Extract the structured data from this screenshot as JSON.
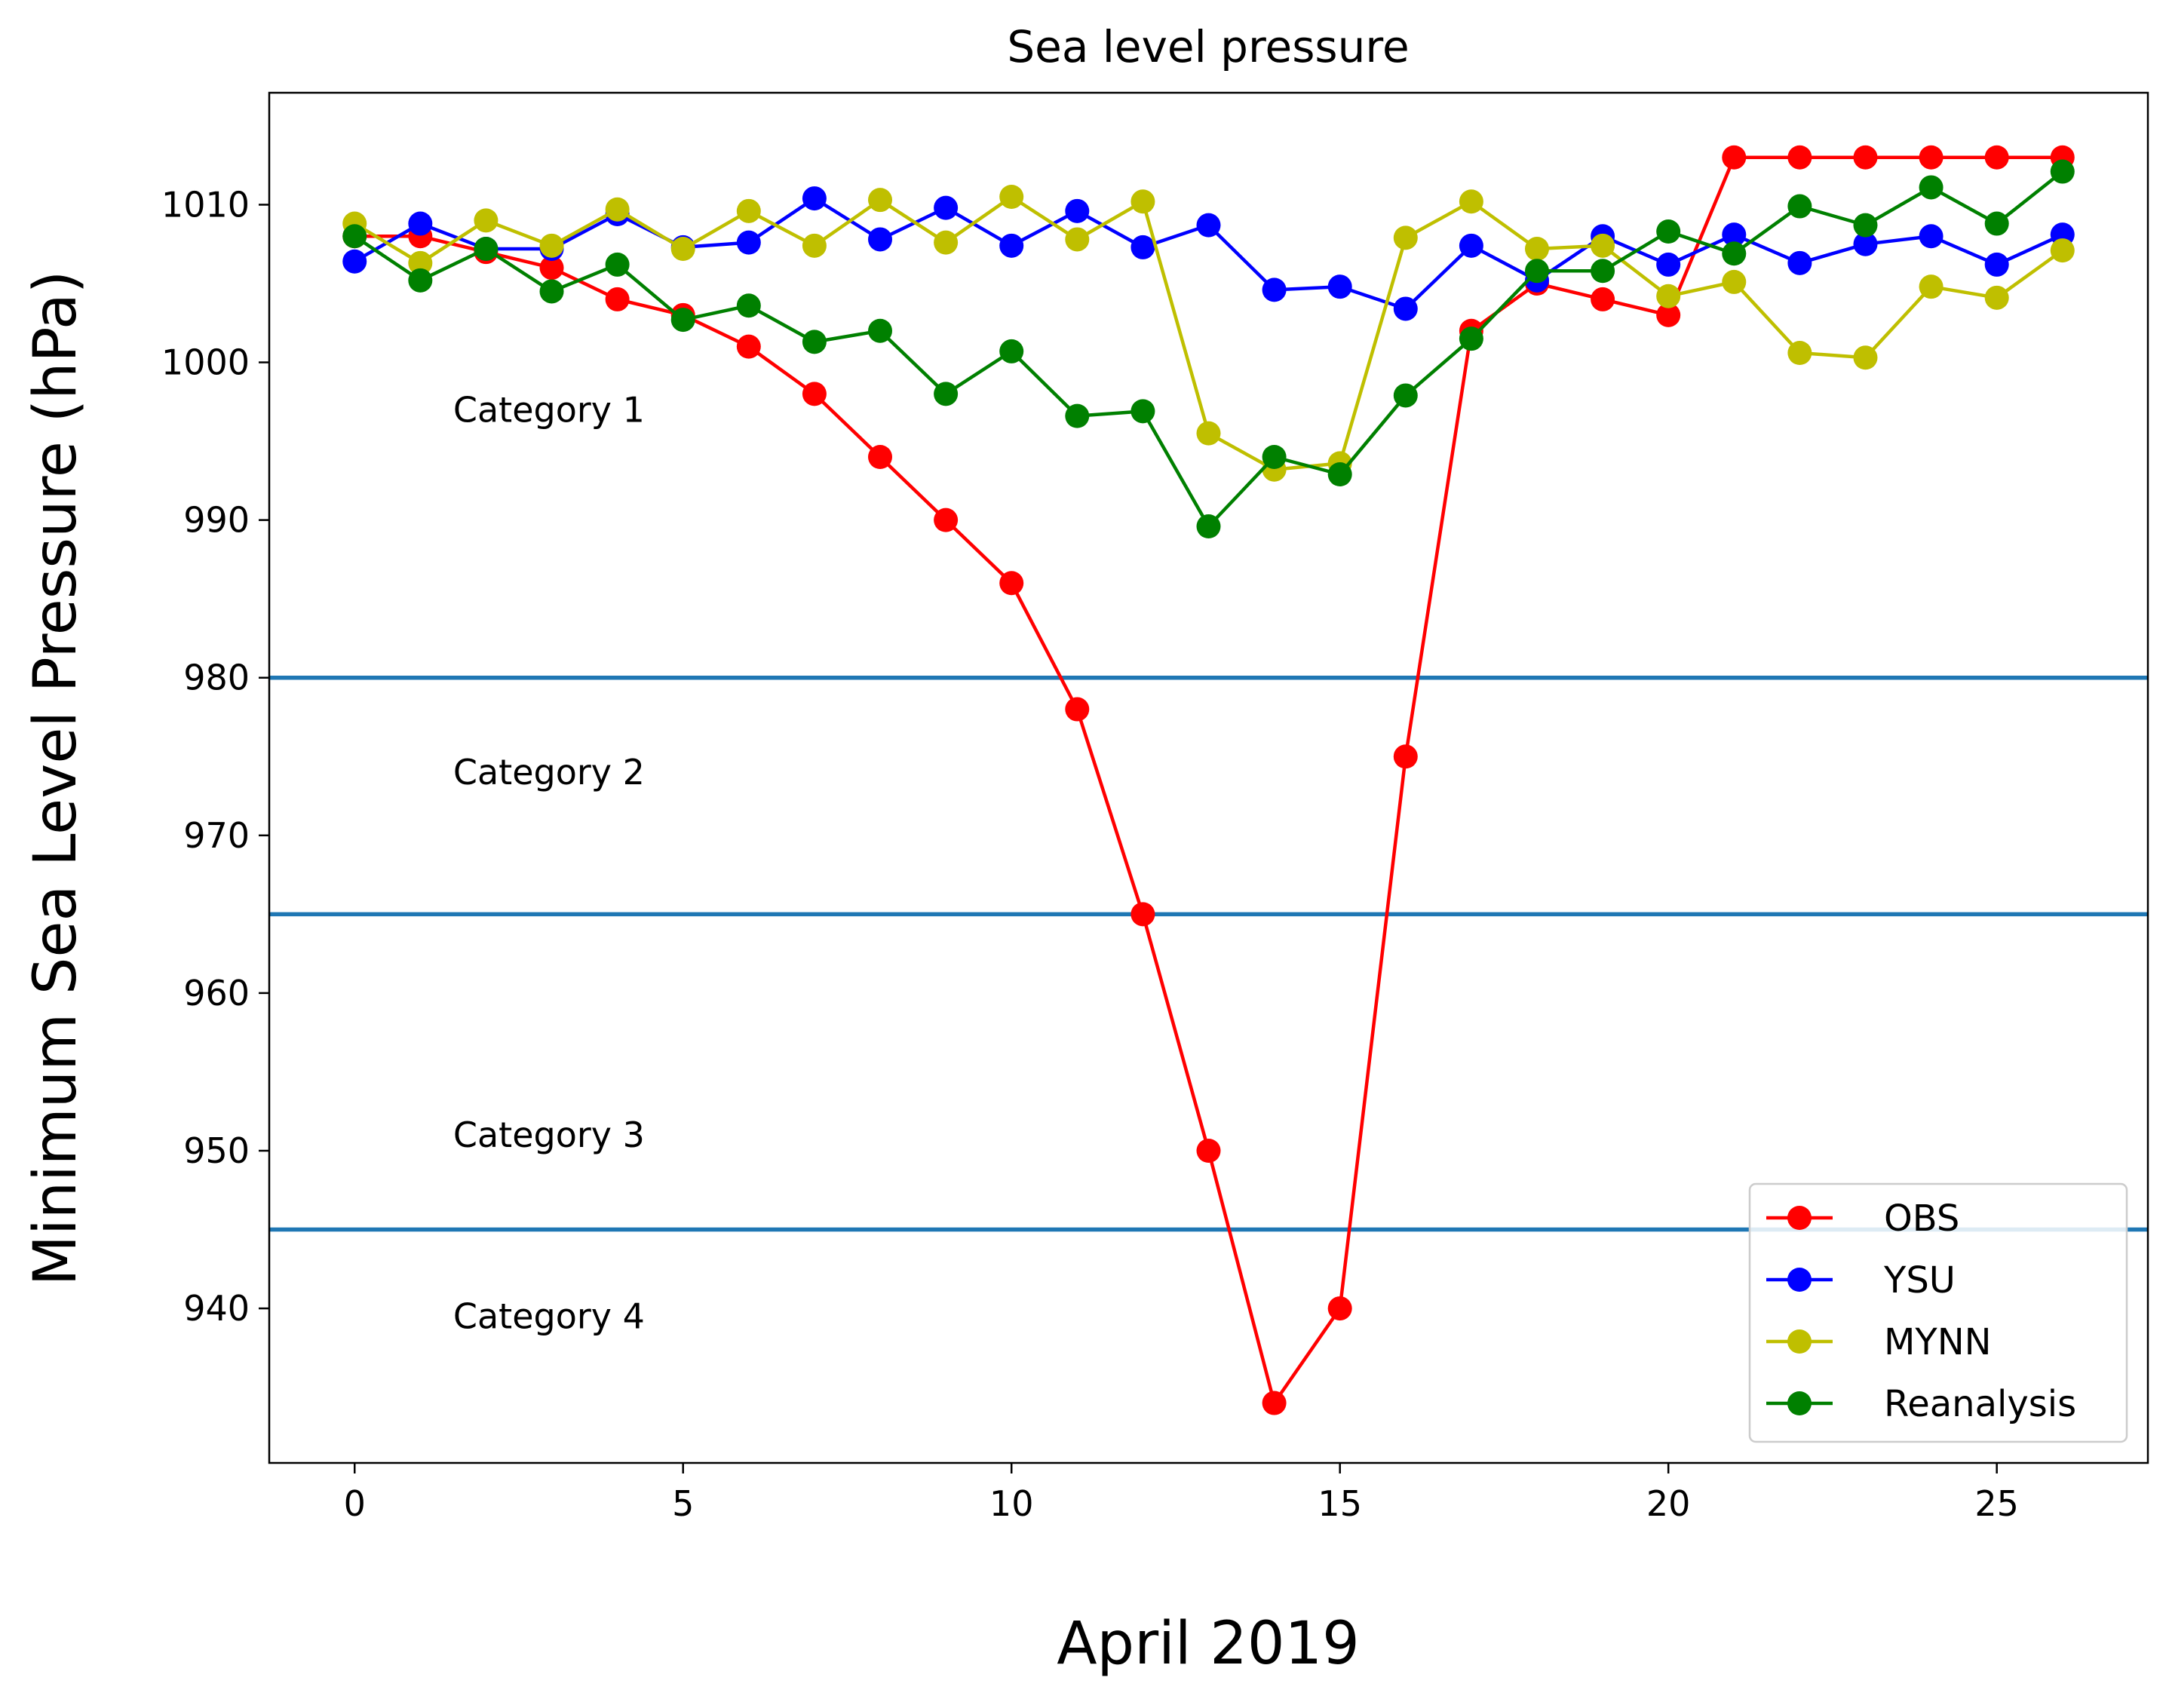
{
  "chart_data": {
    "type": "line",
    "title": "Sea level pressure",
    "xlabel": "April 2019",
    "ylabel": "Minimum Sea Level Pressure (hPa)",
    "xlim": [
      -1.3,
      27.3
    ],
    "ylim": [
      930.2,
      1017.1
    ],
    "xticks": [
      0,
      5,
      10,
      15,
      20,
      25
    ],
    "yticks": [
      940,
      950,
      960,
      970,
      980,
      990,
      1000,
      1010
    ],
    "grid": false,
    "legend_position": "lower right",
    "x": [
      0,
      1,
      2,
      3,
      4,
      5,
      6,
      7,
      8,
      9,
      10,
      11,
      12,
      13,
      14,
      15,
      16,
      17,
      18,
      19,
      20,
      21,
      22,
      23,
      24,
      25,
      26
    ],
    "series": [
      {
        "name": "OBS",
        "color": "#ff0000",
        "values": [
          1008,
          1008,
          1007,
          1006,
          1004,
          1003,
          1001,
          998,
          994,
          990,
          986,
          978,
          965,
          950,
          934,
          940,
          975,
          1002,
          1005,
          1004,
          1003,
          1013,
          1013,
          1013,
          1013,
          1013,
          1013
        ]
      },
      {
        "name": "YSU",
        "color": "#0000ff",
        "values": [
          1006.4,
          1008.8,
          1007.2,
          1007.2,
          1009.4,
          1007.3,
          1007.6,
          1010.4,
          1007.8,
          1009.8,
          1007.4,
          1009.6,
          1007.3,
          1008.7,
          1004.6,
          1004.8,
          1003.4,
          1007.4,
          1005.2,
          1008,
          1006.2,
          1008.1,
          1006.3,
          1007.5,
          1008,
          1006.2,
          1008.1
        ]
      },
      {
        "name": "MYNN",
        "color": "#bfbf00",
        "values": [
          1008.8,
          1006.3,
          1009,
          1007.4,
          1009.7,
          1007.2,
          1009.6,
          1007.4,
          1010.3,
          1007.6,
          1010.5,
          1007.8,
          1010.2,
          995.5,
          993.2,
          993.6,
          1007.9,
          1010.2,
          1007.2,
          1007.4,
          1004.2,
          1005.1,
          1000.6,
          1000.3,
          1004.8,
          1004.1,
          1007.1
        ]
      },
      {
        "name": "Reanalysis",
        "color": "#008000",
        "values": [
          1008,
          1005.2,
          1007.2,
          1004.5,
          1006.2,
          1002.7,
          1003.6,
          1001.3,
          1002,
          998,
          1000.7,
          996.6,
          996.9,
          989.6,
          994,
          992.9,
          997.9,
          1001.5,
          1005.8,
          1005.8,
          1008.3,
          1006.9,
          1009.9,
          1008.7,
          1011.1,
          1008.8,
          1012.1
        ]
      }
    ],
    "hlines": {
      "color": "#1f77b4",
      "values": [
        980,
        965,
        945
      ]
    },
    "annotations": [
      {
        "text": "Category 1",
        "x": 1.5,
        "y": 997
      },
      {
        "text": "Category 2",
        "x": 1.5,
        "y": 974
      },
      {
        "text": "Category 3",
        "x": 1.5,
        "y": 951
      },
      {
        "text": "Category 4",
        "x": 1.5,
        "y": 939.5
      }
    ]
  }
}
